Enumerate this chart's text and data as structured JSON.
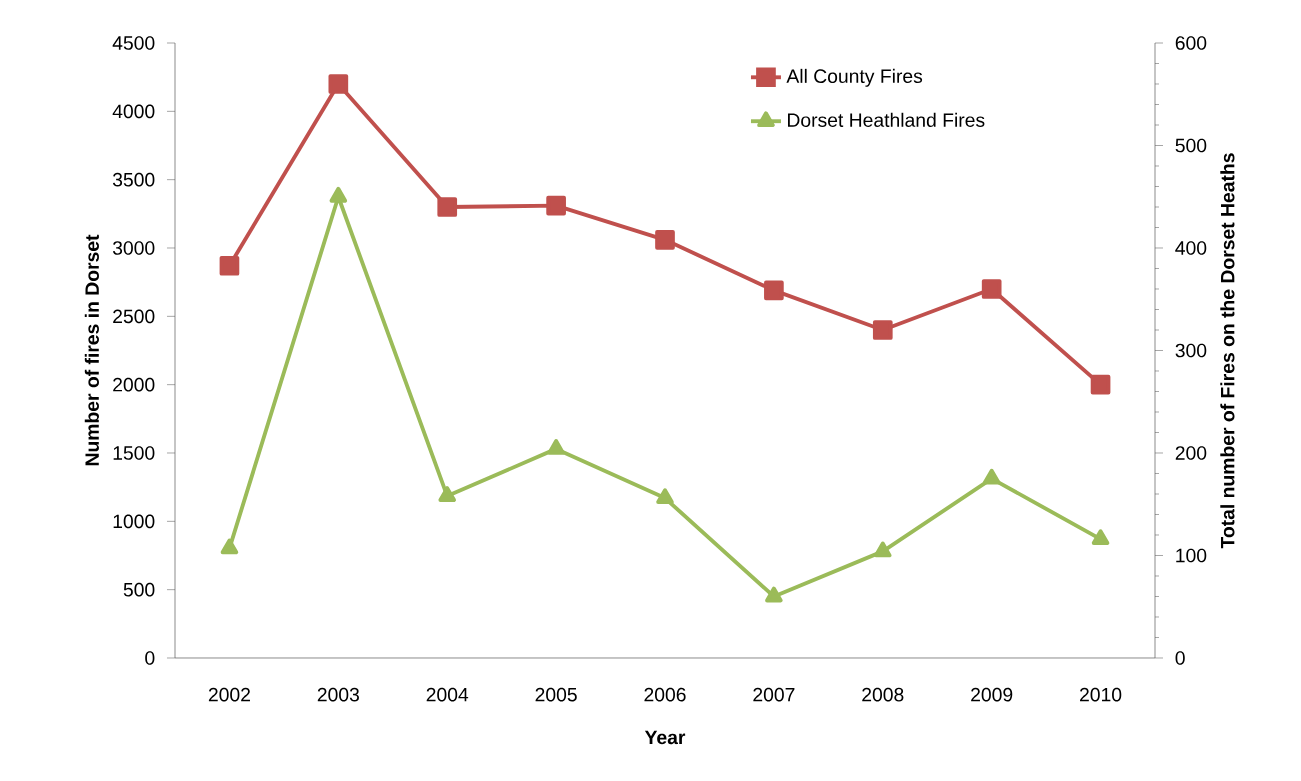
{
  "chart_data": {
    "type": "line",
    "xlabel": "Year",
    "ylabel": "Number of fires in Dorset",
    "y2label": "Total number of Fires on the Dorset Heaths",
    "categories": [
      "2002",
      "2003",
      "2004",
      "2005",
      "2006",
      "2007",
      "2008",
      "2009",
      "2010"
    ],
    "series": [
      {
        "name": "All County Fires",
        "color": "#c0504d",
        "marker": "square",
        "values": [
          2870,
          4200,
          3300,
          3310,
          3060,
          2690,
          2400,
          2700,
          2000
        ]
      },
      {
        "name": "Dorset Heathland Fires",
        "color": "#9bbb59",
        "marker": "triangle",
        "axis": "y2",
        "values": [
          107,
          450,
          158,
          204,
          156,
          60,
          104,
          175,
          116
        ]
      }
    ],
    "ylim": [
      0,
      4500
    ],
    "yticks": [
      0,
      500,
      1000,
      1500,
      2000,
      2500,
      3000,
      3500,
      4000,
      4500
    ],
    "y2lim": [
      0,
      600
    ],
    "y2ticks": [
      0,
      100,
      200,
      300,
      400,
      500,
      600
    ],
    "grid": false,
    "legend": "top right",
    "line_style": "solid"
  }
}
